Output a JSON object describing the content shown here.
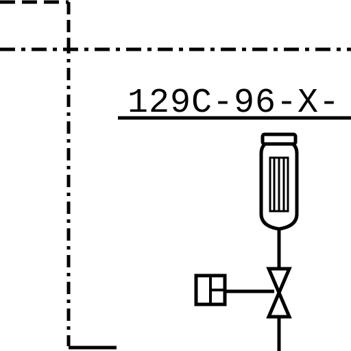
{
  "diagram": {
    "line_number": "129C-96-X-",
    "colors": {
      "ink": "#000000",
      "background": "#ffffff"
    }
  }
}
